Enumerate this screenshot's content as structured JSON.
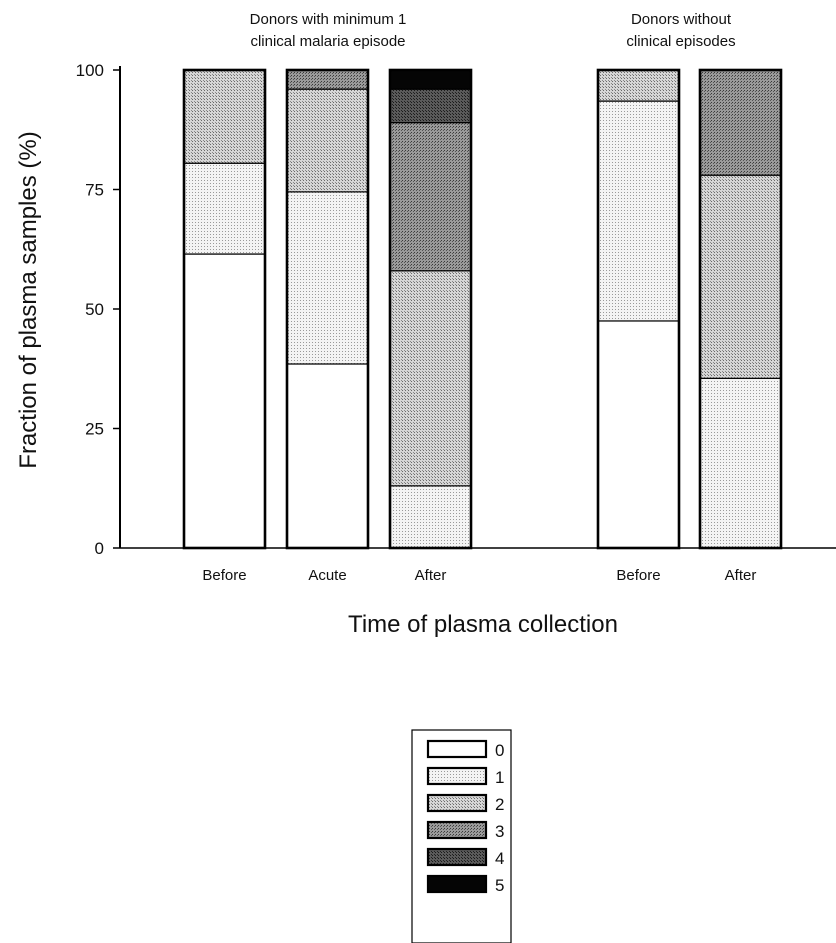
{
  "chart_data": {
    "type": "bar",
    "stacked": true,
    "ylabel": "Fraction of plasma samples (%)",
    "xlabel": "Time of plasma collection",
    "ylim": [
      0,
      100
    ],
    "yticks": [
      0,
      25,
      50,
      75,
      100
    ],
    "grid": false,
    "legend_position": "bottom-center",
    "groups": [
      {
        "title_lines": [
          "Donors with minimum 1",
          "clinical malaria episode"
        ],
        "bars": [
          {
            "category": "Before",
            "values": [
              61.5,
              19.0,
              19.5,
              0,
              0,
              0
            ]
          },
          {
            "category": "Acute",
            "values": [
              38.5,
              36.0,
              21.5,
              4.0,
              0,
              0
            ]
          },
          {
            "category": "After",
            "values": [
              0,
              13.0,
              45.0,
              31.0,
              7.0,
              4.0
            ]
          }
        ]
      },
      {
        "title_lines": [
          "Donors without",
          "clinical episodes"
        ],
        "bars": [
          {
            "category": "Before",
            "values": [
              47.5,
              46.0,
              6.5,
              0,
              0,
              0
            ]
          },
          {
            "category": "After",
            "values": [
              0,
              35.5,
              42.5,
              22.0,
              0,
              0
            ]
          }
        ]
      }
    ],
    "series": [
      {
        "name": "0",
        "color": "#ffffff"
      },
      {
        "name": "1",
        "color": "#eeeeee"
      },
      {
        "name": "2",
        "color": "#c8c8c8"
      },
      {
        "name": "3",
        "color": "#888888"
      },
      {
        "name": "4",
        "color": "#4a4a4a"
      },
      {
        "name": "5",
        "color": "#050505"
      }
    ]
  }
}
